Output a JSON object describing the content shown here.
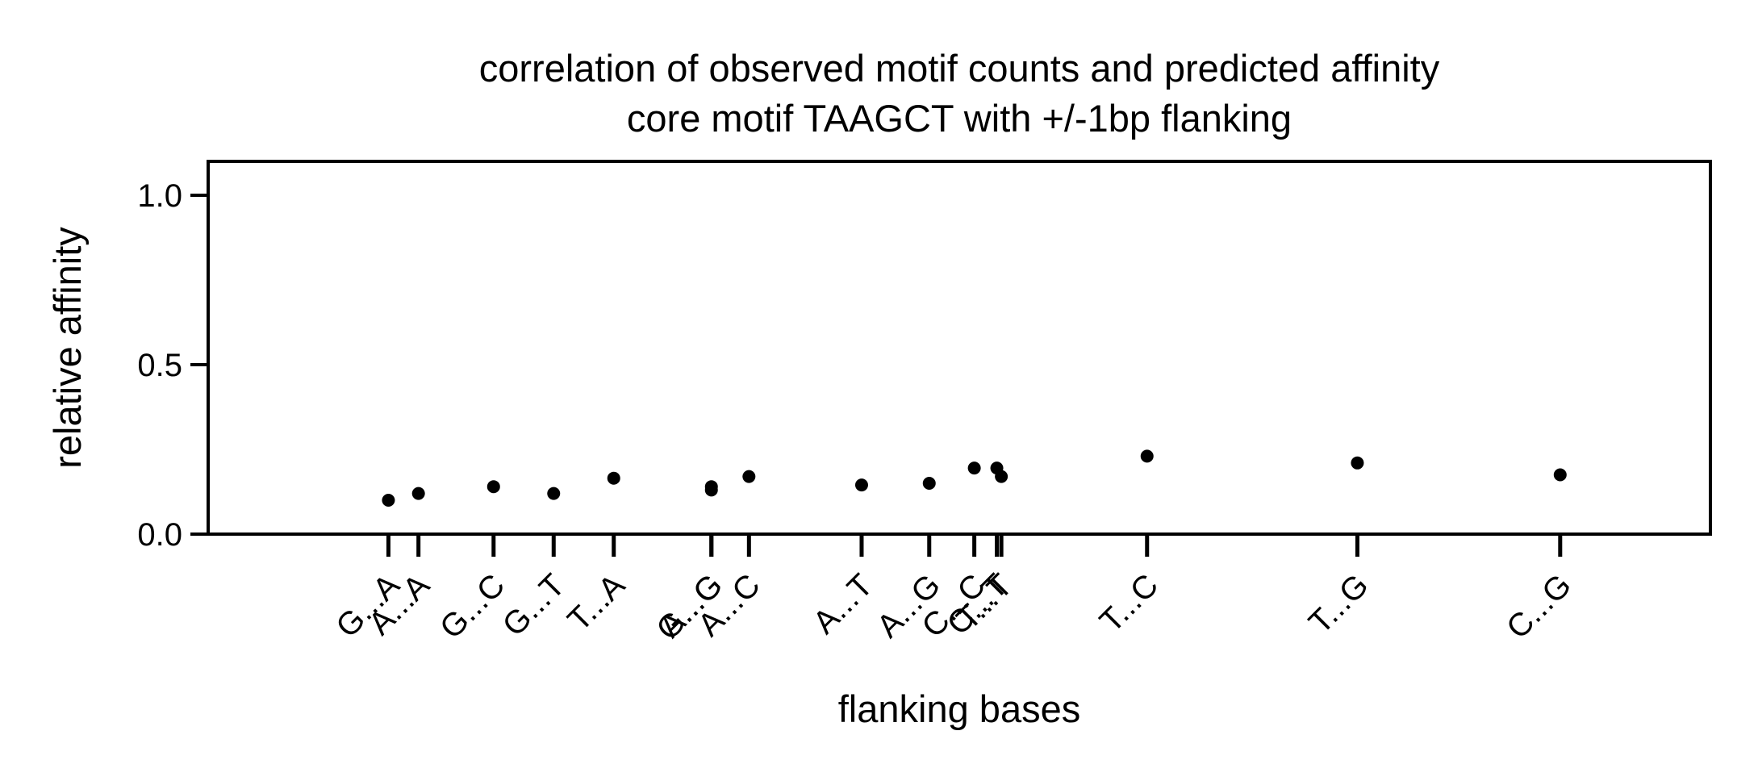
{
  "chart_data": {
    "type": "scatter",
    "title": "correlation of observed motif counts and predicted affinity",
    "subtitle": "core motif TAAGCT with +/-1bp flanking",
    "xlabel": "flanking bases",
    "ylabel": "relative affinity",
    "ylim": [
      0.0,
      1.1
    ],
    "yticks": [
      0.0,
      0.5,
      1.0
    ],
    "ytick_labels": [
      "0.0",
      "0.5",
      "1.0"
    ],
    "grid": false,
    "legend": "none",
    "marker_color": "#000000",
    "points": [
      {
        "label": "G...A",
        "x": 1.8,
        "y": 0.1
      },
      {
        "label": "A...A",
        "x": 2.0,
        "y": 0.12
      },
      {
        "label": "G...C",
        "x": 2.5,
        "y": 0.14
      },
      {
        "label": "G...T",
        "x": 2.9,
        "y": 0.12
      },
      {
        "label": "T...A",
        "x": 3.3,
        "y": 0.165
      },
      {
        "label": "G...G",
        "x": 3.95,
        "y": 0.13
      },
      {
        "label": "A...G",
        "x": 3.95,
        "y": 0.14
      },
      {
        "label": "A...C",
        "x": 4.2,
        "y": 0.17
      },
      {
        "label": "A...T",
        "x": 4.95,
        "y": 0.145
      },
      {
        "label": "A...G",
        "x": 5.4,
        "y": 0.15
      },
      {
        "label": "C...C",
        "x": 5.7,
        "y": 0.195
      },
      {
        "label": "C...T",
        "x": 5.85,
        "y": 0.195
      },
      {
        "label": "T...T",
        "x": 5.88,
        "y": 0.17
      },
      {
        "label": "T...C",
        "x": 6.85,
        "y": 0.23
      },
      {
        "label": "T...G",
        "x": 8.25,
        "y": 0.21
      },
      {
        "label": "C...G",
        "x": 9.6,
        "y": 0.175
      }
    ],
    "xlim": [
      0.6,
      10.6
    ]
  }
}
